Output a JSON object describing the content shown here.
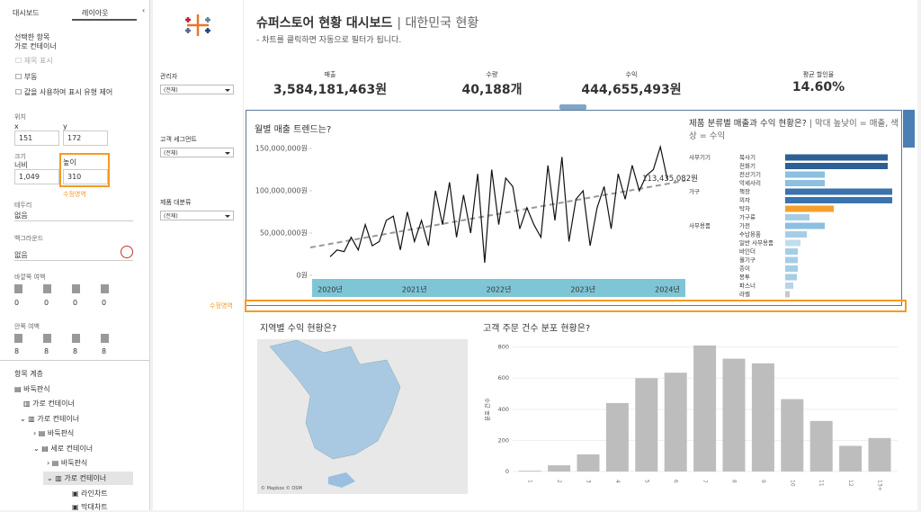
{
  "left_panel": {
    "tabs": [
      "대시보드",
      "레이아웃"
    ],
    "selected_label": "선택한 항목",
    "selected_item": "가로 컨테이너",
    "checkboxes": [
      "제목 표시",
      "부동",
      "값을 사용하여 표시 유형 제어"
    ],
    "position_label": "위치",
    "x_label": "x",
    "x_value": "151",
    "y_label": "y",
    "y_value": "172",
    "size_label": "크기",
    "width_label": "너비",
    "width_value": "1,049",
    "height_label": "높이",
    "height_value": "310",
    "annotation": "수정영역",
    "border_label": "테두리",
    "border_value": "없음",
    "background_label": "백그라운드",
    "background_value": "없음",
    "outer_padding_label": "바깥쪽 여백",
    "outer_padding": [
      "0",
      "0",
      "0",
      "0"
    ],
    "inner_padding_label": "안쪽 여백",
    "inner_padding": [
      "8",
      "8",
      "8",
      "8"
    ],
    "tree_label": "항목 계층",
    "tree": [
      "바둑판식",
      "가로 컨테이너",
      "가로 컨테이너",
      "바둑판식",
      "세로 컨테이너",
      "바둑판식",
      "가로 컨테이너",
      "라인차트",
      "막대차트"
    ]
  },
  "header": {
    "title": "슈퍼스토어 현황 대시보드",
    "title_suffix": "| 대한민국 현황",
    "subtitle": "- 차트를 클릭하면 자동으로 필터가 됩니다."
  },
  "filters": [
    {
      "label": "관리자",
      "value": "(전체)"
    },
    {
      "label": "고객 세그먼트",
      "value": "(전체)"
    },
    {
      "label": "제품 대분류",
      "value": "(전체)"
    }
  ],
  "kpis": [
    {
      "label": "매출",
      "value": "3,584,181,463원"
    },
    {
      "label": "수량",
      "value": "40,188개"
    },
    {
      "label": "수익",
      "value": "444,655,493원"
    },
    {
      "label": "평균 할인율",
      "value": "14.60%"
    }
  ],
  "edit_annotation": "수정영역",
  "line_chart": {
    "type": "line",
    "title": "월별 매출 트렌드는?",
    "color": "#111111",
    "trend_color": "#999999",
    "axis_band_color": "#7ec6d6",
    "categories": [
      "2020년",
      null,
      null,
      null,
      null,
      null,
      null,
      null,
      null,
      null,
      null,
      null,
      "2021년",
      null,
      null,
      null,
      null,
      null,
      null,
      null,
      null,
      null,
      null,
      null,
      "2022년",
      null,
      null,
      null,
      null,
      null,
      null,
      null,
      null,
      null,
      null,
      null,
      "2023년",
      null,
      null,
      null,
      null,
      null,
      null,
      null,
      null,
      null,
      null,
      null,
      "2024년"
    ],
    "values": [
      22000000,
      30000000,
      28000000,
      45000000,
      30000000,
      60000000,
      35000000,
      40000000,
      65000000,
      70000000,
      30000000,
      75000000,
      40000000,
      65000000,
      35000000,
      100000000,
      60000000,
      110000000,
      45000000,
      95000000,
      50000000,
      120000000,
      15000000,
      125000000,
      60000000,
      115000000,
      105000000,
      55000000,
      80000000,
      60000000,
      45000000,
      130000000,
      65000000,
      140000000,
      40000000,
      90000000,
      100000000,
      35000000,
      80000000,
      105000000,
      55000000,
      120000000,
      90000000,
      130000000,
      100000000,
      118000000,
      125000000,
      152000000,
      113435082
    ],
    "value_labels": [
      null,
      null,
      null,
      null,
      null,
      null,
      null,
      null,
      null,
      null,
      null,
      null,
      null,
      null,
      null,
      null,
      null,
      null,
      null,
      null,
      null,
      null,
      null,
      null,
      null,
      null,
      null,
      null,
      null,
      null,
      null,
      null,
      null,
      null,
      null,
      null,
      null,
      null,
      null,
      null,
      null,
      null,
      null,
      null,
      null,
      null,
      null,
      null,
      "113,435,082원"
    ],
    "trend": [
      33000000,
      112000000
    ],
    "ylim": [
      0,
      150000000
    ],
    "yticks": [
      {
        "value": 0,
        "label": "0원"
      },
      {
        "value": 50000000,
        "label": "50,000,000원"
      },
      {
        "value": 100000000,
        "label": "100,000,000원"
      },
      {
        "value": 150000000,
        "label": "150,000,000원"
      }
    ]
  },
  "bar_chart": {
    "type": "bar",
    "title": "제품 분류별 매출과 수익 현황은?",
    "subtitle": "| 막대 높낮이 = 매출, 색상 = 수익",
    "groups": [
      {
        "name": "사무기기",
        "categories": [
          "복사기",
          "전화기",
          "전산기기",
          "악세사리"
        ],
        "values": [
          342000000,
          342000000,
          132000000,
          132000000
        ],
        "colors": [
          "#2e5f95",
          "#2e5f95",
          "#8cbfe0",
          "#8cbfe0"
        ]
      },
      {
        "name": "가구",
        "categories": [
          "책장",
          "의자",
          "탁자",
          "가구류"
        ],
        "values": [
          357000000,
          357000000,
          162000000,
          81000000
        ],
        "colors": [
          "#3a73ad",
          "#3a73ad",
          "#f5a02e",
          "#a6cde6"
        ]
      },
      {
        "name": "사무용품",
        "categories": [
          "가전",
          "수납용품",
          "일반 사무용품",
          "바인더",
          "월기구",
          "종이",
          "봉투",
          "파스너",
          "라벨"
        ],
        "values": [
          132000000,
          72000000,
          51000000,
          42000000,
          42000000,
          42000000,
          39000000,
          27000000,
          15000000
        ],
        "colors": [
          "#8cbfe0",
          "#a6cde6",
          "#c0dcee",
          "#a6cde6",
          "#a6cde6",
          "#a6cde6",
          "#a6cde6",
          "#b6d5ea",
          "#c8c8c8"
        ]
      }
    ]
  },
  "map": {
    "title": "지역별 수익 현황은?",
    "credit": "© Mapbox © OSM"
  },
  "histogram": {
    "type": "bar",
    "title": "고객 주문 건수 분포 현황은?",
    "ylabel": "분포 건수",
    "color": "#bdbdbd",
    "categories": [
      "1",
      "2",
      "3",
      "4",
      "5",
      "6",
      "7",
      "8",
      "9",
      "10",
      "11",
      "12",
      "13+"
    ],
    "values": [
      5,
      40,
      110,
      440,
      600,
      635,
      810,
      725,
      695,
      465,
      325,
      165,
      215
    ],
    "ylim": [
      0,
      850
    ],
    "yticks": [
      0,
      200,
      400,
      600,
      800
    ],
    "grid": true
  }
}
